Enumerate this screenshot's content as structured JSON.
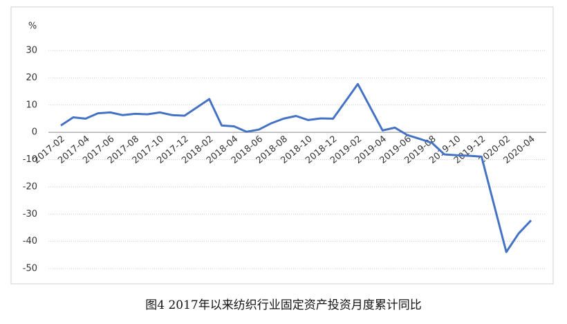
{
  "chart_data": {
    "type": "line",
    "title": "图4 2017年以来纺织行业固定资产投资月度累计同比",
    "y_label": "%",
    "x": [
      "2017-02",
      "2017-03",
      "2017-04",
      "2017-05",
      "2017-06",
      "2017-07",
      "2017-08",
      "2017-09",
      "2017-10",
      "2017-11",
      "2017-12",
      "2018-02",
      "2018-03",
      "2018-04",
      "2018-05",
      "2018-06",
      "2018-07",
      "2018-08",
      "2018-09",
      "2018-10",
      "2018-11",
      "2018-12",
      "2019-02",
      "2019-04",
      "2019-05",
      "2019-06",
      "2019-07",
      "2019-08",
      "2019-09",
      "2019-10",
      "2019-11",
      "2019-12",
      "2020-02",
      "2020-03",
      "2020-04"
    ],
    "values": [
      2.5,
      5.5,
      5.0,
      7.0,
      7.3,
      6.3,
      6.8,
      6.6,
      7.3,
      6.3,
      6.1,
      12.2,
      2.5,
      2.2,
      0.2,
      1.0,
      3.3,
      5.0,
      6.0,
      4.5,
      5.1,
      5.0,
      17.7,
      0.7,
      1.7,
      -1.0,
      -2.4,
      -3.9,
      -8.1,
      -8.4,
      -8.6,
      -8.9,
      -43.9,
      -37.1,
      -32.3
    ],
    "color": "#4472c4",
    "xticks": [
      "2017-02",
      "2017-04",
      "2017-06",
      "2017-08",
      "2017-10",
      "2017-12",
      "2018-02",
      "2018-04",
      "2018-06",
      "2018-08",
      "2018-10",
      "2018-12",
      "2019-02",
      "2019-04",
      "2019-06",
      "2019-08",
      "2019-10",
      "2019-12",
      "2020-02",
      "2020-04"
    ],
    "ylim": [
      -50,
      30
    ],
    "yticks": [
      -50,
      -40,
      -30,
      -20,
      -10,
      0,
      10,
      20,
      30
    ],
    "grid": true
  }
}
